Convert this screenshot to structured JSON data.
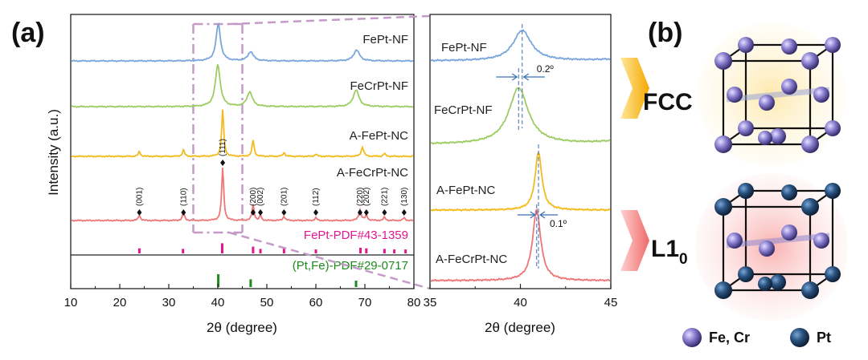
{
  "panel_a_label": "(a)",
  "panel_b_label": "(b)",
  "colors": {
    "fept_nf": "#7aa6db",
    "fecrpt_nf": "#9dcc63",
    "a_fept_nc": "#f2bb1c",
    "a_fecrpt_nc": "#ee7676",
    "pdf1": "#e0188f",
    "pdf2": "#1e8a1e",
    "zoom": "#c49bc7"
  },
  "chart_data": [
    {
      "type": "line",
      "title": "",
      "xlabel": "2θ (degree)",
      "ylabel": "Intensity (a.u.)",
      "xlim": [
        10,
        80
      ],
      "xticks": [
        10,
        20,
        30,
        40,
        50,
        60,
        70,
        80
      ],
      "tick_labels": [
        "10",
        "20",
        "30",
        "40",
        "50",
        "60",
        "70",
        "80"
      ],
      "series": [
        {
          "name": "FePt-NF",
          "peaks": [
            {
              "x": 40.1,
              "h": 1.0,
              "w": 1.1
            },
            {
              "x": 46.7,
              "h": 0.25,
              "w": 1.3
            },
            {
              "x": 68.3,
              "h": 0.3,
              "w": 1.4
            }
          ]
        },
        {
          "name": "FeCrPt-NF",
          "peaks": [
            {
              "x": 40.0,
              "h": 1.0,
              "w": 1.2
            },
            {
              "x": 46.5,
              "h": 0.35,
              "w": 1.3
            },
            {
              "x": 68.2,
              "h": 0.4,
              "w": 1.4
            }
          ]
        },
        {
          "name": "A-FePt-NC",
          "peaks": [
            {
              "x": 24.0,
              "h": 0.1,
              "w": 0.5
            },
            {
              "x": 33.0,
              "h": 0.14,
              "w": 0.5
            },
            {
              "x": 41.0,
              "h": 1.0,
              "w": 0.5
            },
            {
              "x": 47.2,
              "h": 0.35,
              "w": 0.5
            },
            {
              "x": 53.5,
              "h": 0.08,
              "w": 0.5
            },
            {
              "x": 60.0,
              "h": 0.05,
              "w": 0.5
            },
            {
              "x": 69.5,
              "h": 0.2,
              "w": 0.6
            },
            {
              "x": 74.0,
              "h": 0.06,
              "w": 0.5
            }
          ]
        },
        {
          "name": "A-FeCrPt-NC",
          "peaks": [
            {
              "x": 24.0,
              "h": 0.1,
              "w": 0.5
            },
            {
              "x": 33.0,
              "h": 0.15,
              "w": 0.5
            },
            {
              "x": 41.0,
              "h": 1.0,
              "w": 0.5
            },
            {
              "x": 47.2,
              "h": 0.3,
              "w": 0.5
            },
            {
              "x": 48.7,
              "h": 0.1,
              "w": 0.4
            },
            {
              "x": 53.5,
              "h": 0.08,
              "w": 0.5
            },
            {
              "x": 60.0,
              "h": 0.05,
              "w": 0.5
            },
            {
              "x": 69.0,
              "h": 0.2,
              "w": 0.6
            },
            {
              "x": 70.3,
              "h": 0.1,
              "w": 0.5
            },
            {
              "x": 74.0,
              "h": 0.06,
              "w": 0.5
            },
            {
              "x": 78.0,
              "h": 0.05,
              "w": 0.5
            }
          ]
        }
      ],
      "hkl_labels": [
        {
          "label": "(001)",
          "x": 24.0
        },
        {
          "label": "(110)",
          "x": 33.0
        },
        {
          "label": "(111)",
          "x": 41.0
        },
        {
          "label": "(200)",
          "x": 47.2
        },
        {
          "label": "(002)",
          "x": 48.7
        },
        {
          "label": "(201)",
          "x": 53.5
        },
        {
          "label": "(112)",
          "x": 60.0
        },
        {
          "label": "(220)",
          "x": 69.0
        },
        {
          "label": "(202)",
          "x": 70.3
        },
        {
          "label": "(221)",
          "x": 74.0
        },
        {
          "label": "(130)",
          "x": 78.0
        }
      ],
      "reference_patterns": [
        {
          "name": "FePt-PDF#43-1359",
          "lines": [
            24.0,
            32.9,
            40.9,
            47.2,
            48.7,
            53.5,
            60.0,
            69.1,
            70.3,
            74.0,
            76.0,
            78.3
          ],
          "heights": [
            0.45,
            0.4,
            0.9,
            0.6,
            0.4,
            0.45,
            0.35,
            0.5,
            0.45,
            0.4,
            0.35,
            0.35
          ]
        },
        {
          "name": "(Pt,Fe)-PDF#29-0717",
          "lines": [
            40.1,
            46.7,
            68.2
          ],
          "heights": [
            1.0,
            0.6,
            0.5
          ]
        }
      ],
      "zoom_region": [
        35,
        45
      ]
    },
    {
      "type": "line",
      "title": "",
      "xlabel": "2θ (degree)",
      "xlim": [
        35,
        45
      ],
      "xticks": [
        35,
        40,
        45
      ],
      "tick_labels": [
        "35",
        "40",
        "45"
      ],
      "series": [
        {
          "name": "FePt-NF",
          "peak": 40.1,
          "h": 1.0,
          "w": 1.2
        },
        {
          "name": "FeCrPt-NF",
          "peak": 39.9,
          "h": 1.0,
          "w": 1.3
        },
        {
          "name": "A-FePt-NC",
          "peak": 41.0,
          "h": 1.0,
          "w": 0.45
        },
        {
          "name": "A-FeCrPt-NC",
          "peak": 40.9,
          "h": 1.0,
          "w": 0.55
        }
      ],
      "annotations": [
        {
          "label": "0.2º",
          "between": "FePt-NF/FeCrPt-NF"
        },
        {
          "label": "0.1º",
          "between": "A-FePt-NC/A-FeCrPt-NC"
        }
      ]
    }
  ],
  "panel_b": {
    "phase_top": "FCC",
    "phase_bottom_main": "L1",
    "phase_bottom_sub": "0",
    "legend": [
      {
        "label": "Fe, Cr",
        "color": "#8a7fd0"
      },
      {
        "label": "Pt",
        "color": "#1e3d64"
      }
    ]
  }
}
